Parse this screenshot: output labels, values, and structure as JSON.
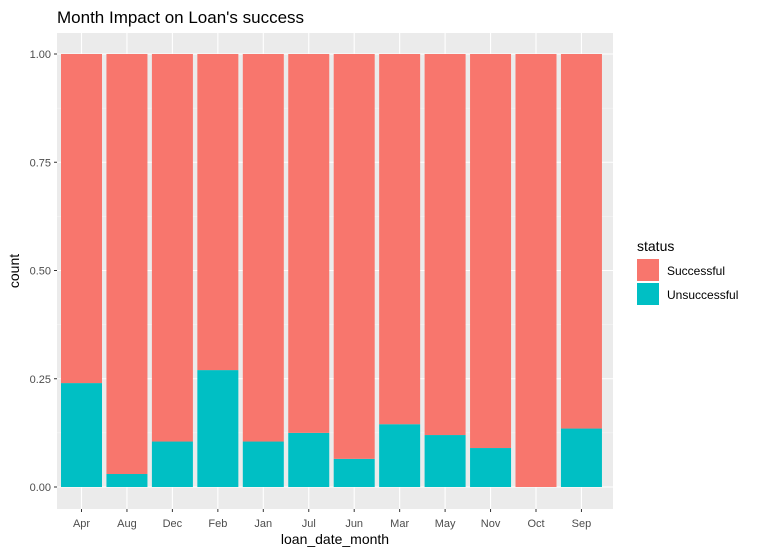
{
  "chart_data": {
    "type": "bar",
    "stacked": true,
    "title": "Month Impact on Loan's success",
    "xlabel": "loan_date_month",
    "ylabel": "count",
    "ylim": [
      0,
      1
    ],
    "yticks": [
      "0.00",
      "0.25",
      "0.50",
      "0.75",
      "1.00"
    ],
    "ytick_values": [
      0,
      0.25,
      0.5,
      0.75,
      1.0
    ],
    "grid": true,
    "legend_position": "right",
    "categories": [
      "Apr",
      "Aug",
      "Dec",
      "Feb",
      "Jan",
      "Jul",
      "Jun",
      "Mar",
      "May",
      "Nov",
      "Oct",
      "Sep"
    ],
    "legend": {
      "title": "status"
    },
    "series": [
      {
        "name": "Successful",
        "color": "#F8766D",
        "values": [
          0.76,
          0.97,
          0.895,
          0.73,
          0.895,
          0.875,
          0.935,
          0.855,
          0.88,
          0.91,
          1.0,
          0.865
        ]
      },
      {
        "name": "Unsuccessful",
        "color": "#00BFC4",
        "values": [
          0.24,
          0.03,
          0.105,
          0.27,
          0.105,
          0.125,
          0.065,
          0.145,
          0.12,
          0.09,
          0.0,
          0.135
        ]
      }
    ]
  }
}
